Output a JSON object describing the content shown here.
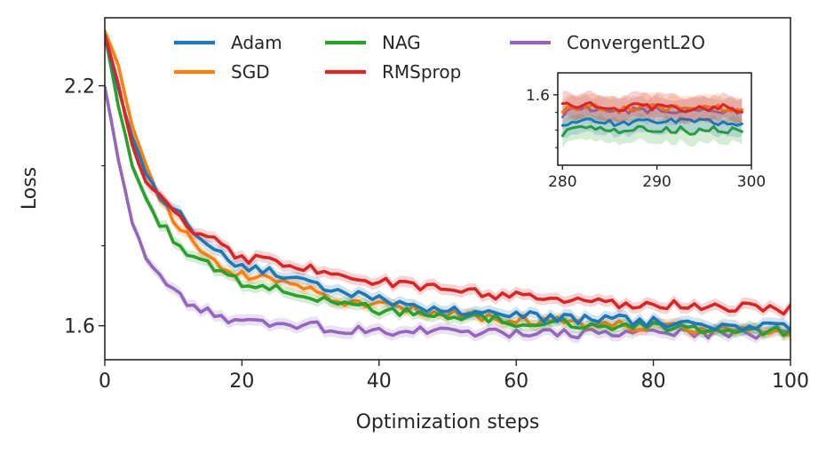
{
  "chart_data": [
    {
      "type": "line",
      "title": "",
      "xlabel": "Optimization steps",
      "ylabel": "Loss",
      "xlim": [
        0,
        100
      ],
      "ylim": [
        1.515,
        2.37
      ],
      "xticks": [
        0,
        20,
        40,
        60,
        80,
        100
      ],
      "xtick_labels": [
        "0",
        "20",
        "40",
        "60",
        "80",
        "100"
      ],
      "yticks_major": [
        1.6,
        2.2
      ],
      "ytick_labels": [
        "1.6",
        "2.2"
      ],
      "yticks_minor": [
        1.8,
        2.0
      ],
      "grid": false,
      "legend": "top, 3 columns",
      "x": [
        0,
        2,
        4,
        6,
        8,
        10,
        12,
        14,
        16,
        18,
        20,
        25,
        30,
        35,
        40,
        45,
        50,
        55,
        60,
        65,
        70,
        75,
        80,
        85,
        90,
        95,
        100
      ],
      "series": [
        {
          "name": "Adam",
          "color": "#1f77b4",
          "values": [
            2.33,
            2.19,
            2.07,
            1.98,
            1.93,
            1.89,
            1.86,
            1.82,
            1.79,
            1.77,
            1.75,
            1.73,
            1.71,
            1.68,
            1.67,
            1.65,
            1.64,
            1.63,
            1.625,
            1.62,
            1.615,
            1.615,
            1.61,
            1.605,
            1.6,
            1.6,
            1.595
          ]
        },
        {
          "name": "SGD",
          "color": "#ff7f0e",
          "values": [
            2.34,
            2.25,
            2.1,
            2.0,
            1.92,
            1.87,
            1.83,
            1.79,
            1.76,
            1.74,
            1.73,
            1.71,
            1.69,
            1.66,
            1.65,
            1.64,
            1.63,
            1.62,
            1.615,
            1.61,
            1.605,
            1.6,
            1.6,
            1.595,
            1.59,
            1.59,
            1.585
          ]
        },
        {
          "name": "NAG",
          "color": "#2ca02c",
          "values": [
            2.33,
            2.15,
            2.0,
            1.92,
            1.86,
            1.82,
            1.78,
            1.76,
            1.74,
            1.72,
            1.71,
            1.695,
            1.675,
            1.655,
            1.64,
            1.63,
            1.625,
            1.62,
            1.61,
            1.61,
            1.605,
            1.6,
            1.6,
            1.595,
            1.59,
            1.59,
            1.585
          ]
        },
        {
          "name": "RMSprop",
          "color": "#d62728",
          "values": [
            2.33,
            2.2,
            2.05,
            1.96,
            1.92,
            1.88,
            1.85,
            1.83,
            1.81,
            1.79,
            1.77,
            1.76,
            1.745,
            1.725,
            1.71,
            1.7,
            1.69,
            1.68,
            1.675,
            1.665,
            1.66,
            1.655,
            1.655,
            1.65,
            1.645,
            1.645,
            1.64
          ]
        },
        {
          "name": "ConvergentL2O",
          "color": "#9467bd",
          "values": [
            2.2,
            2.01,
            1.86,
            1.77,
            1.72,
            1.69,
            1.66,
            1.64,
            1.625,
            1.61,
            1.605,
            1.6,
            1.6,
            1.59,
            1.585,
            1.585,
            1.585,
            1.58,
            1.58,
            1.58,
            1.58,
            1.58,
            1.58,
            1.58,
            1.58,
            1.58,
            1.58
          ]
        }
      ]
    },
    {
      "type": "line",
      "title": "",
      "xlabel": "",
      "ylabel": "",
      "xlim": [
        279.5,
        300
      ],
      "ylim": [
        1.52,
        1.625
      ],
      "xticks": [
        280,
        290,
        300
      ],
      "xtick_labels": [
        "280",
        "290",
        "300"
      ],
      "yticks_major": [
        1.6
      ],
      "ytick_labels": [
        "1.6"
      ],
      "yticks_minor": [
        1.58,
        1.56,
        1.54
      ],
      "grid": false,
      "x": [
        280,
        282,
        284,
        286,
        288,
        290,
        292,
        294,
        296,
        298,
        299
      ],
      "series": [
        {
          "name": "Adam",
          "color": "#1f77b4",
          "values": [
            1.567,
            1.571,
            1.57,
            1.568,
            1.571,
            1.57,
            1.569,
            1.568,
            1.57,
            1.568,
            1.567
          ]
        },
        {
          "name": "SGD",
          "color": "#ff7f0e",
          "values": [
            1.583,
            1.587,
            1.585,
            1.583,
            1.586,
            1.585,
            1.584,
            1.583,
            1.585,
            1.583,
            1.582
          ]
        },
        {
          "name": "NAG",
          "color": "#2ca02c",
          "values": [
            1.557,
            1.563,
            1.561,
            1.559,
            1.562,
            1.56,
            1.561,
            1.558,
            1.561,
            1.559,
            1.558
          ]
        },
        {
          "name": "RMSprop",
          "color": "#d62728",
          "values": [
            1.586,
            1.59,
            1.586,
            1.584,
            1.587,
            1.586,
            1.585,
            1.584,
            1.586,
            1.585,
            1.584
          ]
        },
        {
          "name": "ConvergentL2O",
          "color": "#9467bd",
          "values": [
            1.578,
            1.585,
            1.583,
            1.581,
            1.584,
            1.582,
            1.581,
            1.58,
            1.583,
            1.582,
            1.583
          ]
        }
      ]
    }
  ]
}
